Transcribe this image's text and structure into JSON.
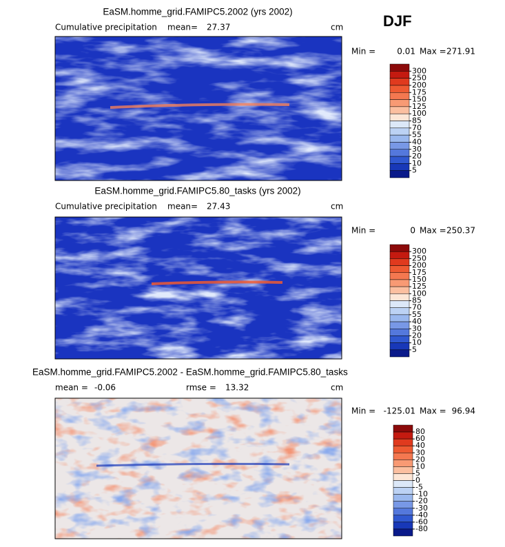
{
  "header": {
    "season": "DJF"
  },
  "panels": [
    {
      "title": "EaSM.homme_grid.FAMIPC5.2002 (yrs 2002)",
      "subtitle": "Cumulative precipitation",
      "stats": [
        {
          "label": "mean=",
          "value": 27.37
        }
      ],
      "unit": "cm",
      "range": {
        "min_label": "Min =",
        "min": 0.01,
        "max_label": "Max =",
        "max": 271.91
      },
      "colorbar": {
        "levels": [
          300,
          250,
          200,
          175,
          150,
          125,
          100,
          85,
          70,
          55,
          40,
          30,
          20,
          10,
          5
        ],
        "colors": [
          "#8c0a0a",
          "#c41a10",
          "#e03a1e",
          "#ee5a32",
          "#f47850",
          "#f89a74",
          "#fbbfa0",
          "#fde6d6",
          "#dce8f8",
          "#bcd2f4",
          "#9ab8ee",
          "#7898e6",
          "#5478dc",
          "#3058d0",
          "#1838b8",
          "#0a1a8a"
        ]
      }
    },
    {
      "title": "EaSM.homme_grid.FAMIPC5.80_tasks (yrs 2002)",
      "subtitle": "Cumulative precipitation",
      "stats": [
        {
          "label": "mean=",
          "value": 27.43
        }
      ],
      "unit": "cm",
      "range": {
        "min_label": "Min =",
        "min": 0.0,
        "max_label": "Max =",
        "max": 250.37
      },
      "colorbar": {
        "levels": [
          300,
          250,
          200,
          175,
          150,
          125,
          100,
          85,
          70,
          55,
          40,
          30,
          20,
          10,
          5
        ],
        "colors": [
          "#8c0a0a",
          "#c41a10",
          "#e03a1e",
          "#ee5a32",
          "#f47850",
          "#f89a74",
          "#fbbfa0",
          "#fde6d6",
          "#dce8f8",
          "#bcd2f4",
          "#9ab8ee",
          "#7898e6",
          "#5478dc",
          "#3058d0",
          "#1838b8",
          "#0a1a8a"
        ]
      }
    },
    {
      "title": "EaSM.homme_grid.FAMIPC5.2002 - EaSM.homme_grid.FAMIPC5.80_tasks",
      "stats": [
        {
          "label": "mean =",
          "value": -0.06
        },
        {
          "label": "rmse =",
          "value": 13.32
        }
      ],
      "unit": "cm",
      "range": {
        "min_label": "Min =",
        "min": -125.01,
        "max_label": "Max =",
        "max": 96.94
      },
      "colorbar": {
        "levels": [
          80,
          60,
          40,
          30,
          20,
          10,
          5,
          0,
          -5,
          -10,
          -20,
          -30,
          -40,
          -60,
          -80
        ],
        "colors": [
          "#8c0a0a",
          "#c41a10",
          "#e03a1e",
          "#ee5a32",
          "#f47850",
          "#f89a74",
          "#fbbfa0",
          "#fde6d6",
          "#dce8f8",
          "#bcd2f4",
          "#9ab8ee",
          "#7898e6",
          "#5478dc",
          "#3058d0",
          "#1838b8",
          "#0a1a8a"
        ]
      }
    }
  ]
}
